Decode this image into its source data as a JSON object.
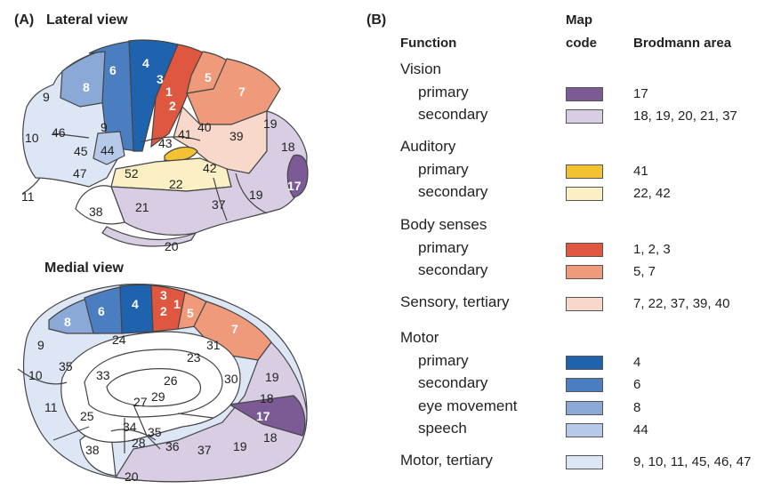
{
  "panelA": {
    "label": "(A)",
    "lateral_title": "Lateral view",
    "medial_title": "Medial view"
  },
  "panelB": {
    "label": "(B)",
    "headers": {
      "function": "Function",
      "map_code_line1": "Map",
      "map_code_line2": "code",
      "brodmann": "Brodmann area"
    },
    "groups": [
      {
        "title": "Vision",
        "rows": [
          {
            "label": "primary",
            "areas": "17",
            "color": "#7b5a95"
          },
          {
            "label": "secondary",
            "areas": "18, 19, 20, 21, 37",
            "color": "#d8cde3"
          }
        ]
      },
      {
        "title": "Auditory",
        "rows": [
          {
            "label": "primary",
            "areas": "41",
            "color": "#f2c232"
          },
          {
            "label": "secondary",
            "areas": "22, 42",
            "color": "#fbf0c4"
          }
        ]
      },
      {
        "title": "Body senses",
        "rows": [
          {
            "label": "primary",
            "areas": "1, 2, 3",
            "color": "#e0573f"
          },
          {
            "label": "secondary",
            "areas": "5, 7",
            "color": "#ee9a7b"
          }
        ]
      },
      {
        "title": "Sensory, tertiary",
        "rows": [
          {
            "label": "",
            "areas": "7, 22, 37, 39, 40",
            "color": "#f8d8cb"
          }
        ]
      },
      {
        "title": "Motor",
        "rows": [
          {
            "label": "primary",
            "areas": "4",
            "color": "#1f63ae"
          },
          {
            "label": "secondary",
            "areas": "6",
            "color": "#4a7ec0"
          },
          {
            "label": "eye movement",
            "areas": "8",
            "color": "#8aa9d7"
          },
          {
            "label": "speech",
            "areas": "44",
            "color": "#b7c9e8"
          }
        ]
      },
      {
        "title": "Motor, tertiary",
        "rows": [
          {
            "label": "",
            "areas": "9, 10, 11, 45, 46, 47",
            "color": "#dde6f4"
          }
        ]
      }
    ]
  },
  "lateral_areas": [
    "9",
    "8",
    "6",
    "4",
    "3",
    "1",
    "2",
    "5",
    "7",
    "46",
    "10",
    "45",
    "44",
    "9",
    "47",
    "11",
    "43",
    "41",
    "40",
    "39",
    "19",
    "18",
    "17",
    "52",
    "42",
    "22",
    "21",
    "37",
    "19",
    "38",
    "20"
  ],
  "medial_areas": [
    "8",
    "6",
    "4",
    "3",
    "2",
    "1",
    "5",
    "7",
    "9",
    "24",
    "31",
    "23",
    "10",
    "35",
    "33",
    "26",
    "30",
    "19",
    "18",
    "17",
    "11",
    "27",
    "29",
    "25",
    "34",
    "35",
    "28",
    "36",
    "38",
    "37",
    "19",
    "18",
    "20"
  ]
}
